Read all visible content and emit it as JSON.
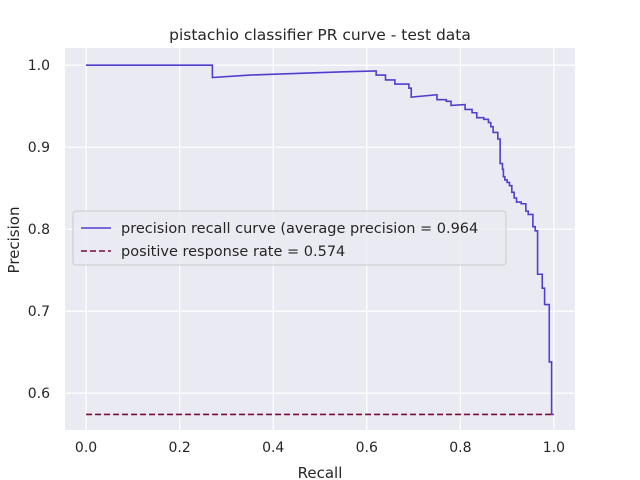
{
  "chart_data": {
    "type": "line",
    "title": "pistachio classifier PR curve - test data",
    "xlabel": "Recall",
    "ylabel": "Precision",
    "xlim": [
      -0.045,
      1.045
    ],
    "ylim": [
      0.555,
      1.021
    ],
    "xticks": [
      0.0,
      0.2,
      0.4,
      0.6,
      0.8,
      1.0
    ],
    "xtick_labels": [
      "0.0",
      "0.2",
      "0.4",
      "0.6",
      "0.8",
      "1.0"
    ],
    "yticks": [
      0.6,
      0.7,
      0.8,
      0.9,
      1.0
    ],
    "ytick_labels": [
      "0.6",
      "0.7",
      "0.8",
      "0.9",
      "1.0"
    ],
    "grid": true,
    "legend_position": "center-left",
    "series": [
      {
        "name": "precision recall curve (average precision = 0.964",
        "color": "#4f3fcf",
        "style": "step",
        "points": [
          [
            0.0,
            1.0
          ],
          [
            0.27,
            1.0
          ],
          [
            0.27,
            0.985
          ],
          [
            0.35,
            0.988
          ],
          [
            0.45,
            0.99
          ],
          [
            0.55,
            0.992
          ],
          [
            0.62,
            0.993
          ],
          [
            0.62,
            0.988
          ],
          [
            0.64,
            0.988
          ],
          [
            0.64,
            0.982
          ],
          [
            0.66,
            0.982
          ],
          [
            0.66,
            0.977
          ],
          [
            0.69,
            0.977
          ],
          [
            0.69,
            0.972
          ],
          [
            0.695,
            0.972
          ],
          [
            0.695,
            0.961
          ],
          [
            0.75,
            0.964
          ],
          [
            0.75,
            0.958
          ],
          [
            0.77,
            0.958
          ],
          [
            0.77,
            0.956
          ],
          [
            0.78,
            0.956
          ],
          [
            0.78,
            0.951
          ],
          [
            0.81,
            0.952
          ],
          [
            0.81,
            0.946
          ],
          [
            0.825,
            0.946
          ],
          [
            0.825,
            0.942
          ],
          [
            0.835,
            0.942
          ],
          [
            0.835,
            0.936
          ],
          [
            0.85,
            0.936
          ],
          [
            0.85,
            0.934
          ],
          [
            0.86,
            0.934
          ],
          [
            0.86,
            0.93
          ],
          [
            0.865,
            0.93
          ],
          [
            0.865,
            0.925
          ],
          [
            0.87,
            0.925
          ],
          [
            0.87,
            0.918
          ],
          [
            0.88,
            0.918
          ],
          [
            0.88,
            0.91
          ],
          [
            0.885,
            0.91
          ],
          [
            0.885,
            0.88
          ],
          [
            0.89,
            0.88
          ],
          [
            0.89,
            0.873
          ],
          [
            0.892,
            0.873
          ],
          [
            0.892,
            0.864
          ],
          [
            0.895,
            0.864
          ],
          [
            0.895,
            0.86
          ],
          [
            0.9,
            0.86
          ],
          [
            0.9,
            0.857
          ],
          [
            0.905,
            0.857
          ],
          [
            0.905,
            0.853
          ],
          [
            0.91,
            0.853
          ],
          [
            0.91,
            0.845
          ],
          [
            0.915,
            0.845
          ],
          [
            0.915,
            0.838
          ],
          [
            0.92,
            0.838
          ],
          [
            0.92,
            0.833
          ],
          [
            0.93,
            0.833
          ],
          [
            0.93,
            0.831
          ],
          [
            0.94,
            0.831
          ],
          [
            0.94,
            0.822
          ],
          [
            0.945,
            0.822
          ],
          [
            0.945,
            0.818
          ],
          [
            0.955,
            0.818
          ],
          [
            0.955,
            0.803
          ],
          [
            0.96,
            0.803
          ],
          [
            0.96,
            0.798
          ],
          [
            0.965,
            0.798
          ],
          [
            0.965,
            0.745
          ],
          [
            0.975,
            0.745
          ],
          [
            0.975,
            0.728
          ],
          [
            0.98,
            0.728
          ],
          [
            0.98,
            0.708
          ],
          [
            0.99,
            0.708
          ],
          [
            0.99,
            0.638
          ],
          [
            0.995,
            0.638
          ],
          [
            0.995,
            0.574
          ],
          [
            1.0,
            0.574
          ]
        ]
      },
      {
        "name": "positive response rate = 0.574",
        "color": "#7a0a3c",
        "style": "dashed",
        "points": [
          [
            0.0,
            0.574
          ],
          [
            1.0,
            0.574
          ]
        ]
      }
    ]
  }
}
